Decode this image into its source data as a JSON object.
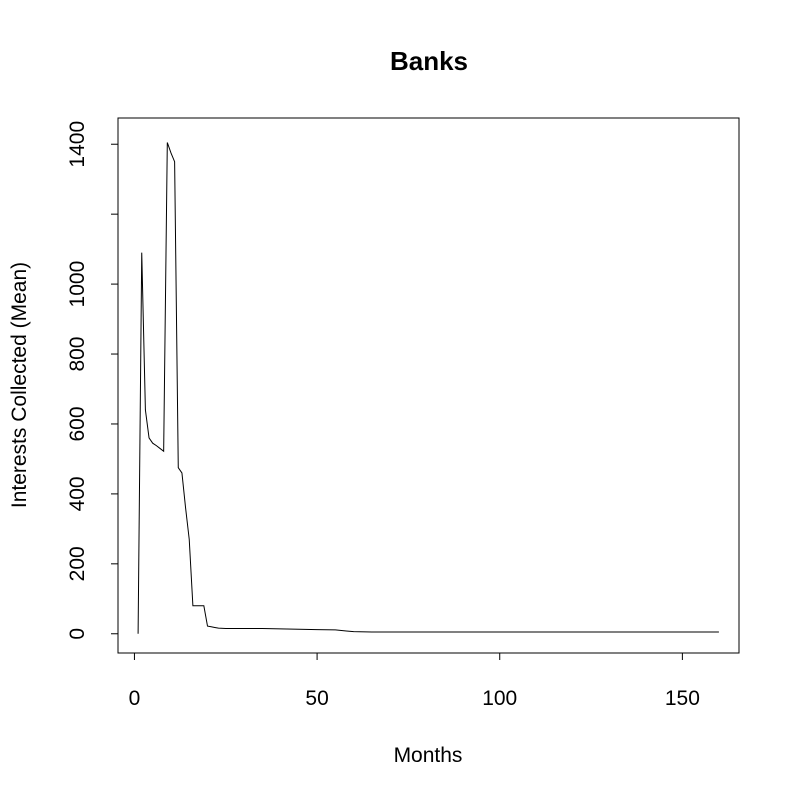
{
  "chart_data": {
    "type": "line",
    "title": "Banks",
    "xlabel": "Months",
    "ylabel": "Interests Collected (Mean)",
    "xlim": [
      -4.5,
      165.5
    ],
    "ylim": [
      -55,
      1475
    ],
    "x_ticks": [
      0,
      50,
      100,
      150
    ],
    "y_ticks": [
      0,
      200,
      400,
      600,
      800,
      1000,
      1200,
      1400
    ],
    "y_tick_labels": [
      "0",
      "200",
      "400",
      "600",
      "800",
      "1000",
      "",
      "1400"
    ],
    "grid": false,
    "series": [
      {
        "x": [
          1,
          2,
          3,
          4,
          5,
          6,
          7,
          8,
          9,
          10,
          11,
          12,
          13,
          14,
          15,
          16,
          17,
          18,
          19,
          20,
          21,
          22,
          23,
          25,
          30,
          35,
          40,
          45,
          50,
          55,
          56,
          58,
          60,
          65,
          70,
          80,
          90,
          100,
          110,
          120,
          130,
          140,
          150,
          160
        ],
        "y": [
          0,
          1090,
          640,
          560,
          545,
          538,
          530,
          522,
          1405,
          1375,
          1350,
          475,
          460,
          360,
          270,
          80,
          80,
          80,
          80,
          22,
          20,
          18,
          16,
          15,
          15,
          15,
          14,
          13,
          12,
          11,
          10,
          8,
          6,
          5,
          5,
          5,
          5,
          5,
          5,
          5,
          5,
          5,
          5,
          5
        ]
      }
    ]
  }
}
